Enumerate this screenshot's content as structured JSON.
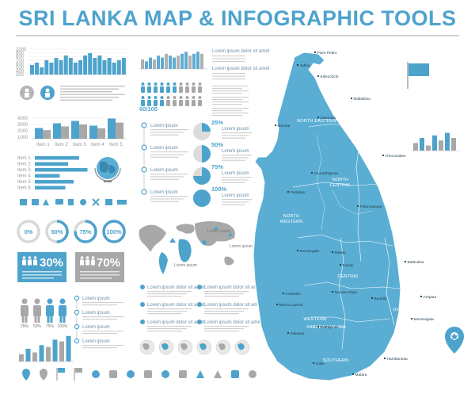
{
  "title": "SRI LANKA MAP & INFOGRAPHIC TOOLS",
  "colors": {
    "accent": "#4da3cc",
    "map": "#5aaed3",
    "grey": "#a8a8a8",
    "dark": "#3a3a3a"
  },
  "top_bar_chart": {
    "ticks": [
      "1000",
      "900",
      "800",
      "700",
      "600",
      "500",
      "400",
      "300"
    ],
    "values": [
      4,
      5,
      3,
      6,
      5,
      7,
      6,
      8,
      7,
      5,
      6,
      8,
      9,
      7,
      8,
      6,
      7,
      5,
      6,
      7
    ]
  },
  "area_chart": {
    "ticks": [
      "4000",
      "3000",
      "2000",
      "1000"
    ],
    "categories": [
      "Item 1",
      "Item 2",
      "Item 3",
      "Item 4",
      "Item 5"
    ],
    "values": [
      1800,
      2600,
      3000,
      2200,
      3400
    ]
  },
  "hbar_chart": {
    "categories": [
      "Item 1",
      "Item 2",
      "Item 3",
      "Item 4",
      "Item 5",
      "Item 6"
    ],
    "values": [
      0.8,
      0.6,
      0.95,
      0.45,
      0.7,
      0.55
    ]
  },
  "sparkline": {
    "values": [
      5,
      4,
      6,
      5,
      7,
      6,
      8,
      7,
      6,
      7,
      8,
      9,
      7,
      8,
      9,
      8
    ]
  },
  "people_score": "60/100",
  "lorem": "Lorem ipsum",
  "lorem_small": "Lorem ipsum dolor sit amet",
  "pie_percents": [
    "25%",
    "50%",
    "75%",
    "100%"
  ],
  "timeline_labels": [
    "Lorem ipsum",
    "Lorem ipsum",
    "Lorem ipsum",
    "Lorem ipsum"
  ],
  "donuts": [
    "0%",
    "50%",
    "75%",
    "100%"
  ],
  "people_cards": [
    "30%",
    "70%"
  ],
  "figure_percents": [
    "25%",
    "50%",
    "75%",
    "100%"
  ],
  "world_labels": [
    "Lorem ipsum dolor sit amet",
    "Lorem ipsum dolor sit amet",
    "Lorem ipsum dolor sit amet",
    "Lorem ipsum dolor sit amet",
    "Lorem ipsum dolor sit amet",
    "Lorem ipsum dolor sit amet"
  ],
  "regions": [
    "NORTH EASTERN",
    "NORTH CENTRAL",
    "NORTH WESTERN",
    "NORTH EASTERN",
    "CENTRAL",
    "WESTERN",
    "SABARAGAMUWA",
    "UVA",
    "SOUTHERN"
  ],
  "cities": [
    "Point Pedro",
    "Jaffna",
    "Kilinochchi",
    "Mannar",
    "Mullaittivu",
    "Vavuniya",
    "Trincomalee",
    "Anuradhapura",
    "Puttalam",
    "Polonnaruwa",
    "Kurunegala",
    "Batticaloa",
    "Matale",
    "Kandy",
    "Ampara",
    "Colombo",
    "Mount Lavinia",
    "Nuwara Eliya",
    "Badulla",
    "Ratnapura",
    "Kalutara",
    "Monaragala",
    "Galle",
    "Matara",
    "Hambantota"
  ],
  "right_chart": {
    "values": [
      3,
      5,
      2,
      6,
      4,
      7,
      5
    ]
  }
}
